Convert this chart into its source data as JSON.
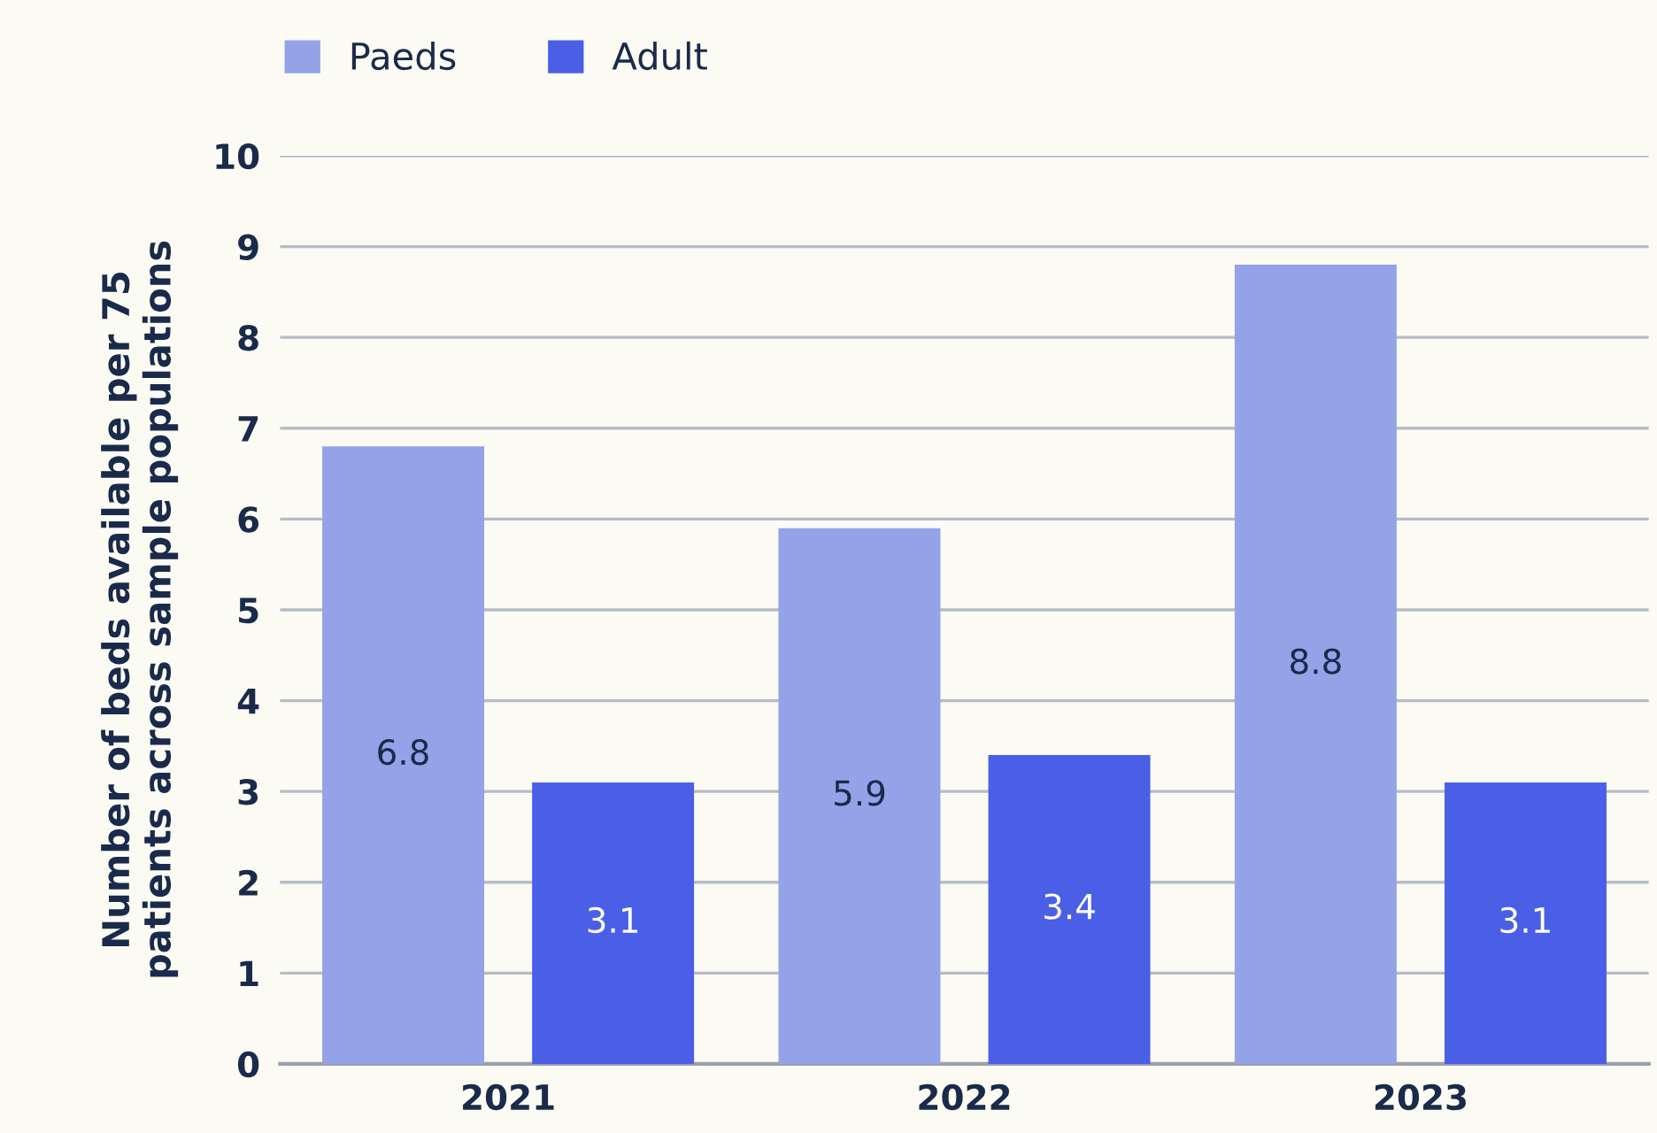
{
  "chart_data": {
    "type": "bar",
    "ylabel": "Number of beds available per 75\npatients across sample populations",
    "categories": [
      "2021",
      "2022",
      "2023"
    ],
    "series": [
      {
        "name": "Paeds",
        "color": "#94a3e8",
        "values": [
          6.8,
          5.9,
          8.8
        ]
      },
      {
        "name": "Adult",
        "color": "#4a5fe6",
        "values": [
          3.1,
          3.4,
          3.1
        ]
      }
    ],
    "ylim": [
      0,
      10
    ],
    "yticks": [
      0,
      1,
      2,
      3,
      4,
      5,
      6,
      7,
      8,
      9,
      10
    ],
    "grid": "y",
    "legend": "top left",
    "data_labels": true
  }
}
